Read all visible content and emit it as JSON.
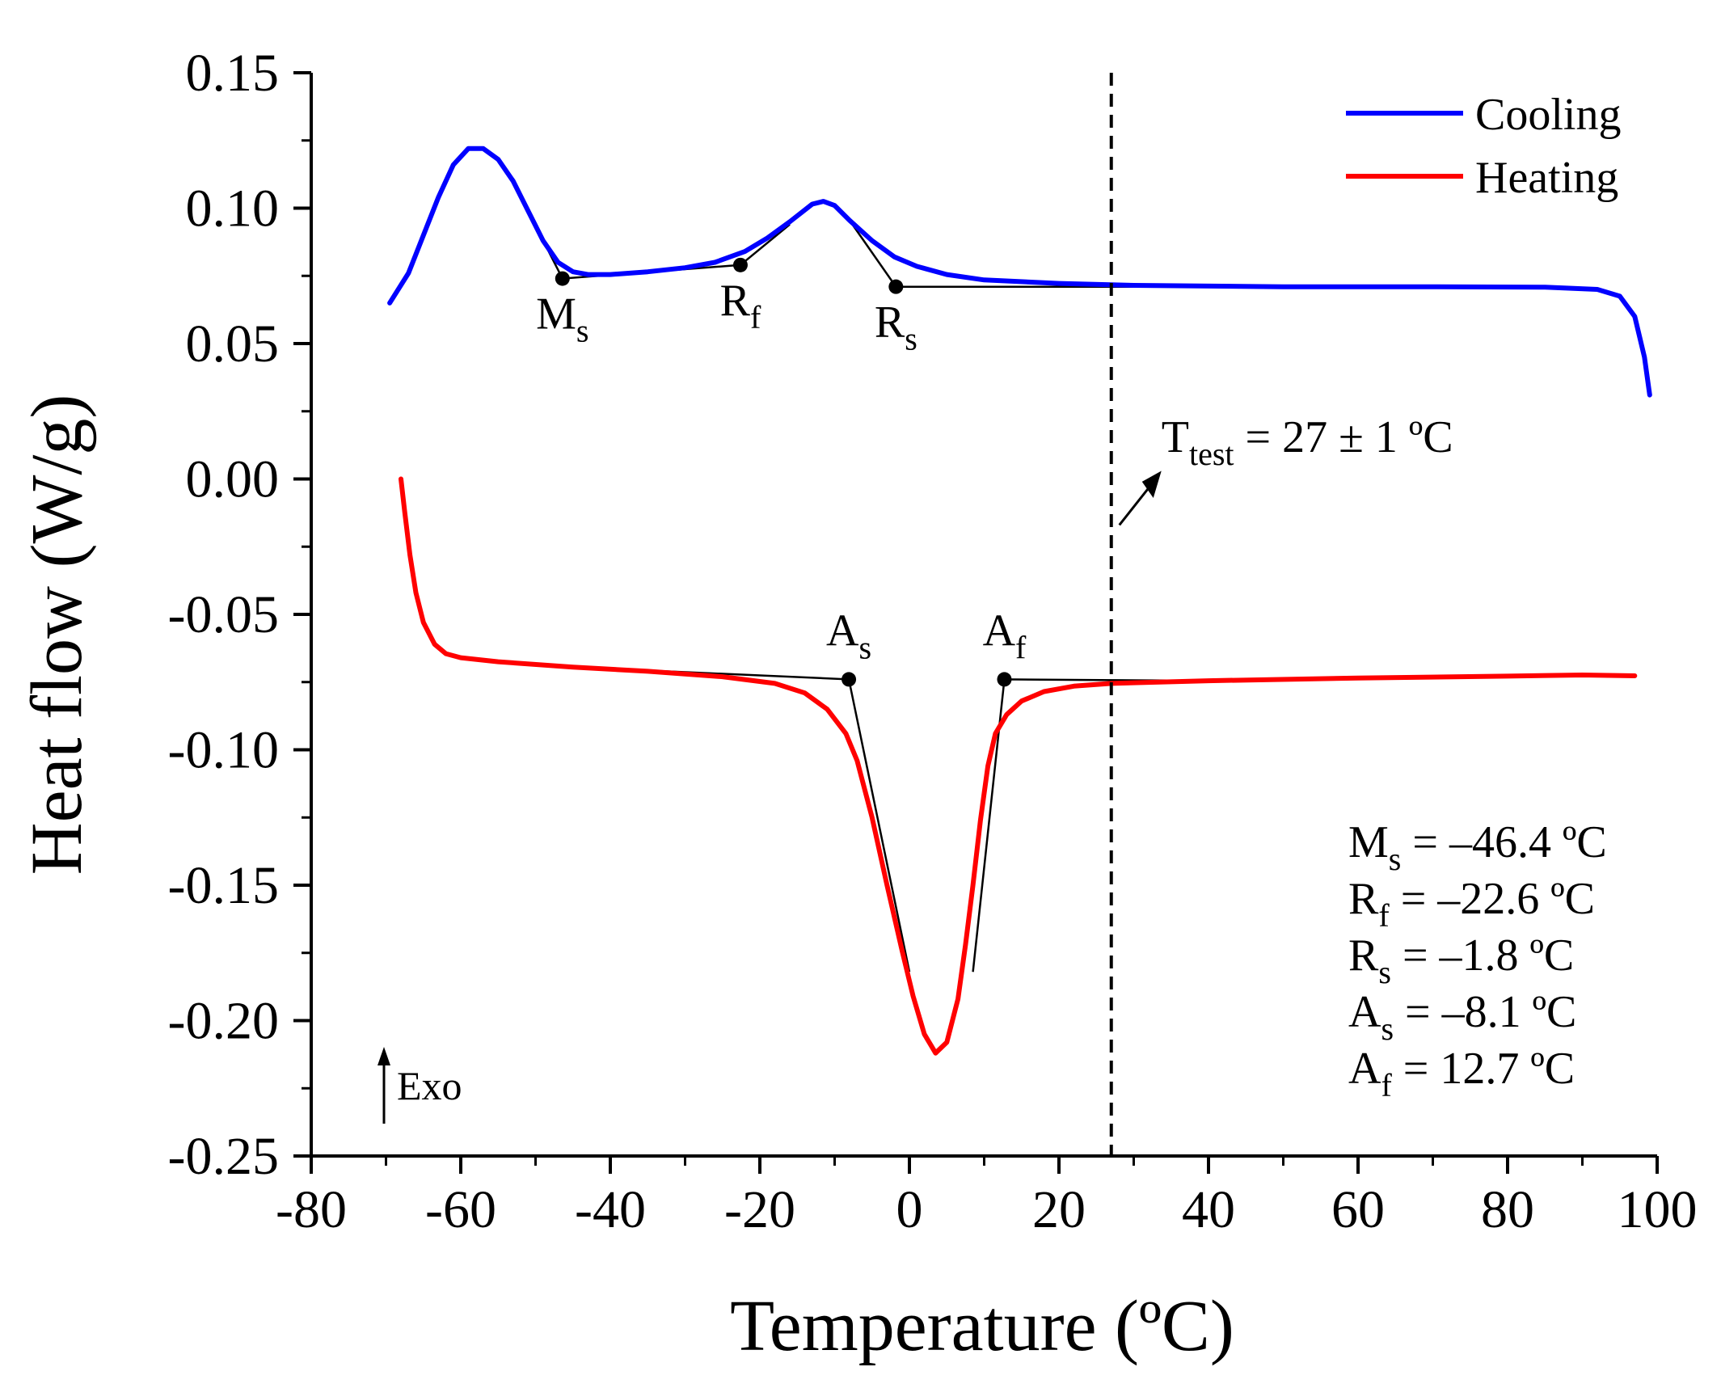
{
  "chart_data": {
    "type": "line",
    "title": "",
    "xlabel": "Temperature (ºC)",
    "ylabel": "Heat flow (W/g)",
    "xlim": [
      -80,
      100
    ],
    "ylim": [
      -0.25,
      0.15
    ],
    "x_ticks": [
      -80,
      -60,
      -40,
      -20,
      0,
      20,
      40,
      60,
      80,
      100
    ],
    "x_tick_labels": [
      "-80",
      "-60",
      "-40",
      "-20",
      "0",
      "20",
      "40",
      "60",
      "80",
      "100"
    ],
    "y_ticks": [
      -0.25,
      -0.2,
      -0.15,
      -0.1,
      -0.05,
      0.0,
      0.05,
      0.1,
      0.15
    ],
    "y_tick_labels": [
      "-0.25",
      "-0.20",
      "-0.15",
      "-0.10",
      "-0.05",
      "0.00",
      "0.05",
      "0.10",
      "0.15"
    ],
    "legend": {
      "position": "top-right",
      "entries": [
        {
          "label": "Cooling",
          "color": "#0000ff"
        },
        {
          "label": "Heating",
          "color": "#ff0000"
        }
      ]
    },
    "series": [
      {
        "name": "Cooling",
        "color": "#0000ff",
        "points": [
          [
            -69.5,
            0.065
          ],
          [
            -67,
            0.076
          ],
          [
            -65,
            0.09
          ],
          [
            -63,
            0.104
          ],
          [
            -61,
            0.116
          ],
          [
            -59,
            0.122
          ],
          [
            -57,
            0.122
          ],
          [
            -55,
            0.118
          ],
          [
            -53,
            0.11
          ],
          [
            -51,
            0.099
          ],
          [
            -49,
            0.088
          ],
          [
            -47,
            0.08
          ],
          [
            -45,
            0.0765
          ],
          [
            -43,
            0.0755
          ],
          [
            -40,
            0.0755
          ],
          [
            -35,
            0.0765
          ],
          [
            -30,
            0.078
          ],
          [
            -26,
            0.08
          ],
          [
            -22,
            0.084
          ],
          [
            -19,
            0.089
          ],
          [
            -16,
            0.095
          ],
          [
            -13,
            0.1015
          ],
          [
            -11.5,
            0.1025
          ],
          [
            -10,
            0.101
          ],
          [
            -8,
            0.0955
          ],
          [
            -5,
            0.088
          ],
          [
            -2,
            0.082
          ],
          [
            1,
            0.0785
          ],
          [
            5,
            0.0755
          ],
          [
            10,
            0.0735
          ],
          [
            20,
            0.0722
          ],
          [
            30,
            0.0715
          ],
          [
            50,
            0.071
          ],
          [
            70,
            0.071
          ],
          [
            85,
            0.0708
          ],
          [
            92,
            0.07
          ],
          [
            95,
            0.0675
          ],
          [
            97,
            0.06
          ],
          [
            98.3,
            0.045
          ],
          [
            99,
            0.031
          ]
        ]
      },
      {
        "name": "Heating",
        "color": "#ff0000",
        "points": [
          [
            -68,
            0.0
          ],
          [
            -67.5,
            -0.012
          ],
          [
            -66.8,
            -0.028
          ],
          [
            -66,
            -0.042
          ],
          [
            -65,
            -0.053
          ],
          [
            -63.5,
            -0.061
          ],
          [
            -62,
            -0.0645
          ],
          [
            -60,
            -0.066
          ],
          [
            -55,
            -0.0675
          ],
          [
            -45,
            -0.0695
          ],
          [
            -35,
            -0.071
          ],
          [
            -25,
            -0.073
          ],
          [
            -18,
            -0.0755
          ],
          [
            -14,
            -0.079
          ],
          [
            -11,
            -0.085
          ],
          [
            -8.5,
            -0.094
          ],
          [
            -7,
            -0.104
          ],
          [
            -5,
            -0.125
          ],
          [
            -3,
            -0.15
          ],
          [
            -1,
            -0.174
          ],
          [
            0.5,
            -0.191
          ],
          [
            2,
            -0.205
          ],
          [
            3.5,
            -0.212
          ],
          [
            5,
            -0.208
          ],
          [
            6.5,
            -0.192
          ],
          [
            7.5,
            -0.172
          ],
          [
            8.5,
            -0.15
          ],
          [
            9.5,
            -0.126
          ],
          [
            10.5,
            -0.106
          ],
          [
            11.5,
            -0.094
          ],
          [
            13,
            -0.087
          ],
          [
            15,
            -0.082
          ],
          [
            18,
            -0.0785
          ],
          [
            22,
            -0.0765
          ],
          [
            27,
            -0.0755
          ],
          [
            40,
            -0.0745
          ],
          [
            60,
            -0.0735
          ],
          [
            80,
            -0.0728
          ],
          [
            90,
            -0.0724
          ],
          [
            97,
            -0.0727
          ]
        ]
      }
    ],
    "tangent_lines": [
      {
        "series": "Cooling",
        "points": [
          [
            -51,
            0.099
          ],
          [
            -46.4,
            0.074
          ],
          [
            -22.6,
            0.079
          ]
        ]
      },
      {
        "series": "Cooling",
        "points": [
          [
            -22.6,
            0.079
          ],
          [
            -16,
            0.094
          ]
        ]
      },
      {
        "series": "Cooling",
        "points": [
          [
            -8,
            0.0955
          ],
          [
            -1.8,
            0.071
          ],
          [
            70,
            0.071
          ]
        ]
      },
      {
        "series": "Heating",
        "points": [
          [
            -45,
            -0.0695
          ],
          [
            -8.1,
            -0.074
          ],
          [
            0,
            -0.182
          ]
        ]
      },
      {
        "series": "Heating",
        "points": [
          [
            8.5,
            -0.182
          ],
          [
            12.7,
            -0.074
          ],
          [
            40,
            -0.0745
          ]
        ]
      }
    ],
    "annotations": {
      "points": [
        {
          "name": "Ms",
          "main": "M",
          "sub": "s",
          "x": -46.4,
          "y": 0.074,
          "label_side": "below"
        },
        {
          "name": "Rf",
          "main": "R",
          "sub": "f",
          "x": -22.6,
          "y": 0.079,
          "label_side": "below"
        },
        {
          "name": "Rs",
          "main": "R",
          "sub": "s",
          "x": -1.8,
          "y": 0.071,
          "label_side": "below"
        },
        {
          "name": "As",
          "main": "A",
          "sub": "s",
          "x": -8.1,
          "y": -0.074,
          "label_side": "above"
        },
        {
          "name": "Af",
          "main": "A",
          "sub": "f",
          "x": 12.7,
          "y": -0.074,
          "label_side": "above"
        }
      ],
      "test_line": {
        "x": 27,
        "main": "T",
        "sub": "test",
        "rest": " = 27 ± 1 ºC"
      },
      "exo": "Exo",
      "values": [
        {
          "main": "M",
          "sub": "s",
          "rest": " = –46.4 ºC"
        },
        {
          "main": "R",
          "sub": "f",
          "rest": " = –22.6 ºC"
        },
        {
          "main": "R",
          "sub": "s",
          "rest": " = –1.8 ºC"
        },
        {
          "main": "A",
          "sub": "s",
          "rest": " = –8.1 ºC"
        },
        {
          "main": "A",
          "sub": "f",
          "rest": " = 12.7 ºC"
        }
      ]
    }
  }
}
